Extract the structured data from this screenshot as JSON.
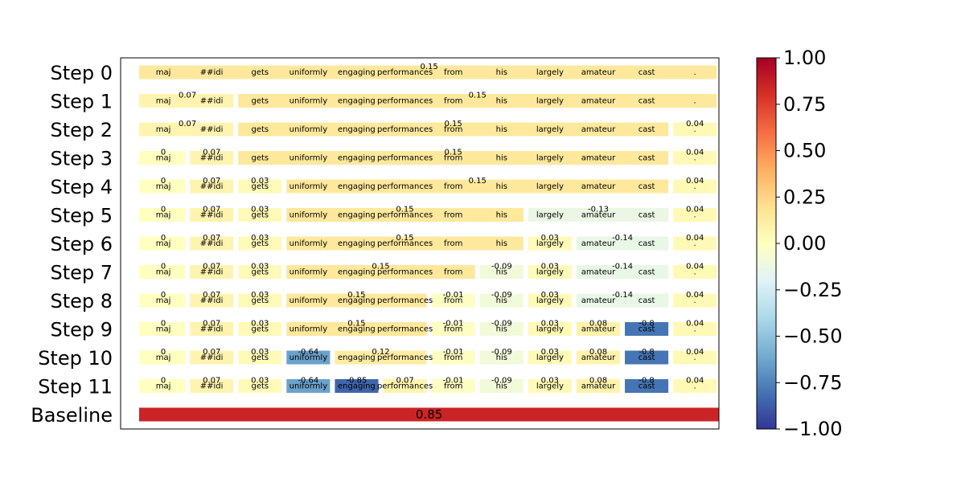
{
  "chart_data": {
    "type": "heatmap",
    "tokens": [
      "maj",
      "##idi",
      "gets",
      "uniformly",
      "engaging",
      "performances",
      "from",
      "his",
      "largely",
      "amateur",
      "cast",
      "."
    ],
    "rows": [
      {
        "label": "Step 0",
        "segments": [
          {
            "start": 0,
            "end": 11,
            "value": 0.15
          }
        ]
      },
      {
        "label": "Step 1",
        "segments": [
          {
            "start": 0,
            "end": 1,
            "value": 0.07
          },
          {
            "start": 2,
            "end": 11,
            "value": 0.15
          }
        ]
      },
      {
        "label": "Step 2",
        "segments": [
          {
            "start": 0,
            "end": 1,
            "value": 0.07
          },
          {
            "start": 2,
            "end": 10,
            "value": 0.15
          },
          {
            "start": 11,
            "end": 11,
            "value": 0.04
          }
        ]
      },
      {
        "label": "Step 3",
        "segments": [
          {
            "start": 0,
            "end": 0,
            "value": 0.0
          },
          {
            "start": 1,
            "end": 1,
            "value": 0.07
          },
          {
            "start": 2,
            "end": 10,
            "value": 0.15
          },
          {
            "start": 11,
            "end": 11,
            "value": 0.04
          }
        ]
      },
      {
        "label": "Step 4",
        "segments": [
          {
            "start": 0,
            "end": 0,
            "value": 0.0
          },
          {
            "start": 1,
            "end": 1,
            "value": 0.07
          },
          {
            "start": 2,
            "end": 2,
            "value": 0.03
          },
          {
            "start": 3,
            "end": 10,
            "value": 0.15
          },
          {
            "start": 11,
            "end": 11,
            "value": 0.04
          }
        ]
      },
      {
        "label": "Step 5",
        "segments": [
          {
            "start": 0,
            "end": 0,
            "value": 0.0
          },
          {
            "start": 1,
            "end": 1,
            "value": 0.07
          },
          {
            "start": 2,
            "end": 2,
            "value": 0.03
          },
          {
            "start": 3,
            "end": 7,
            "value": 0.15
          },
          {
            "start": 8,
            "end": 10,
            "value": -0.13
          },
          {
            "start": 11,
            "end": 11,
            "value": 0.04
          }
        ]
      },
      {
        "label": "Step 6",
        "segments": [
          {
            "start": 0,
            "end": 0,
            "value": 0.0
          },
          {
            "start": 1,
            "end": 1,
            "value": 0.07
          },
          {
            "start": 2,
            "end": 2,
            "value": 0.03
          },
          {
            "start": 3,
            "end": 7,
            "value": 0.15
          },
          {
            "start": 8,
            "end": 8,
            "value": 0.03
          },
          {
            "start": 9,
            "end": 10,
            "value": -0.14
          },
          {
            "start": 11,
            "end": 11,
            "value": 0.04
          }
        ]
      },
      {
        "label": "Step 7",
        "segments": [
          {
            "start": 0,
            "end": 0,
            "value": 0.0
          },
          {
            "start": 1,
            "end": 1,
            "value": 0.07
          },
          {
            "start": 2,
            "end": 2,
            "value": 0.03
          },
          {
            "start": 3,
            "end": 6,
            "value": 0.15
          },
          {
            "start": 7,
            "end": 7,
            "value": -0.09
          },
          {
            "start": 8,
            "end": 8,
            "value": 0.03
          },
          {
            "start": 9,
            "end": 10,
            "value": -0.14
          },
          {
            "start": 11,
            "end": 11,
            "value": 0.04
          }
        ]
      },
      {
        "label": "Step 8",
        "segments": [
          {
            "start": 0,
            "end": 0,
            "value": 0.0
          },
          {
            "start": 1,
            "end": 1,
            "value": 0.07
          },
          {
            "start": 2,
            "end": 2,
            "value": 0.03
          },
          {
            "start": 3,
            "end": 5,
            "value": 0.15
          },
          {
            "start": 6,
            "end": 6,
            "value": -0.01
          },
          {
            "start": 7,
            "end": 7,
            "value": -0.09
          },
          {
            "start": 8,
            "end": 8,
            "value": 0.03
          },
          {
            "start": 9,
            "end": 10,
            "value": -0.14
          },
          {
            "start": 11,
            "end": 11,
            "value": 0.04
          }
        ]
      },
      {
        "label": "Step 9",
        "segments": [
          {
            "start": 0,
            "end": 0,
            "value": 0.0
          },
          {
            "start": 1,
            "end": 1,
            "value": 0.07
          },
          {
            "start": 2,
            "end": 2,
            "value": 0.03
          },
          {
            "start": 3,
            "end": 5,
            "value": 0.15
          },
          {
            "start": 6,
            "end": 6,
            "value": -0.01
          },
          {
            "start": 7,
            "end": 7,
            "value": -0.09
          },
          {
            "start": 8,
            "end": 8,
            "value": 0.03
          },
          {
            "start": 9,
            "end": 9,
            "value": 0.08
          },
          {
            "start": 10,
            "end": 10,
            "value": -0.8
          },
          {
            "start": 11,
            "end": 11,
            "value": 0.04
          }
        ]
      },
      {
        "label": "Step 10",
        "segments": [
          {
            "start": 0,
            "end": 0,
            "value": 0.0
          },
          {
            "start": 1,
            "end": 1,
            "value": 0.07
          },
          {
            "start": 2,
            "end": 2,
            "value": 0.03
          },
          {
            "start": 3,
            "end": 3,
            "value": -0.64
          },
          {
            "start": 4,
            "end": 5,
            "value": 0.12
          },
          {
            "start": 6,
            "end": 6,
            "value": -0.01
          },
          {
            "start": 7,
            "end": 7,
            "value": -0.09
          },
          {
            "start": 8,
            "end": 8,
            "value": 0.03
          },
          {
            "start": 9,
            "end": 9,
            "value": 0.08
          },
          {
            "start": 10,
            "end": 10,
            "value": -0.8
          },
          {
            "start": 11,
            "end": 11,
            "value": 0.04
          }
        ]
      },
      {
        "label": "Step 11",
        "segments": [
          {
            "start": 0,
            "end": 0,
            "value": 0.0
          },
          {
            "start": 1,
            "end": 1,
            "value": 0.07
          },
          {
            "start": 2,
            "end": 2,
            "value": 0.03
          },
          {
            "start": 3,
            "end": 3,
            "value": -0.64
          },
          {
            "start": 4,
            "end": 4,
            "value": -0.85
          },
          {
            "start": 5,
            "end": 5,
            "value": 0.07
          },
          {
            "start": 6,
            "end": 6,
            "value": -0.01
          },
          {
            "start": 7,
            "end": 7,
            "value": -0.09
          },
          {
            "start": 8,
            "end": 8,
            "value": 0.03
          },
          {
            "start": 9,
            "end": 9,
            "value": 0.08
          },
          {
            "start": 10,
            "end": 10,
            "value": -0.8
          },
          {
            "start": 11,
            "end": 11,
            "value": 0.04
          }
        ]
      }
    ],
    "baseline": {
      "label": "Baseline",
      "value": 0.85
    },
    "colorbar": {
      "colormap": "RdYlBu_r",
      "range": [
        -1.0,
        1.0
      ],
      "ticks": [
        "1.00",
        "0.75",
        "0.50",
        "0.25",
        "0.00",
        "−0.25",
        "−0.50",
        "−0.75",
        "−1.00"
      ],
      "tick_values": [
        1.0,
        0.75,
        0.5,
        0.25,
        0.0,
        -0.25,
        -0.5,
        -0.75,
        -1.0
      ]
    },
    "title": "",
    "xlabel": "",
    "ylabel": "",
    "grid": false
  }
}
